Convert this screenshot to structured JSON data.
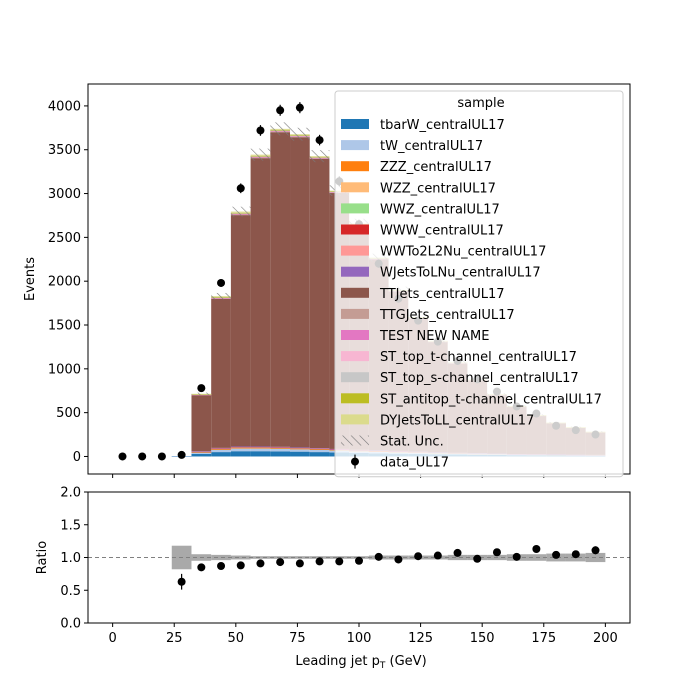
{
  "chart_data": [
    {
      "type": "bar",
      "stacked": true,
      "title": "",
      "xlabel": "",
      "ylabel": "Events",
      "xlim": [
        -10,
        210
      ],
      "ylim": [
        -200,
        4250
      ],
      "xticks": [
        0,
        25,
        50,
        75,
        100,
        125,
        150,
        175,
        200
      ],
      "xtick_labels_shown": false,
      "yticks": [
        0,
        500,
        1000,
        1500,
        2000,
        2500,
        3000,
        3500,
        4000
      ],
      "ytick_labels": [
        "0",
        "500",
        "1000",
        "1500",
        "2000",
        "2500",
        "3000",
        "3500",
        "4000"
      ],
      "bin_edges": [
        0,
        8,
        16,
        24,
        32,
        40,
        48,
        56,
        64,
        72,
        80,
        88,
        96,
        104,
        112,
        120,
        128,
        136,
        144,
        152,
        160,
        168,
        176,
        184,
        192,
        200
      ],
      "series": [
        {
          "name": "tbarW_centralUL17",
          "color": "#1f77b4",
          "values": [
            0,
            0,
            0,
            3,
            30,
            50,
            60,
            60,
            58,
            55,
            50,
            45,
            40,
            36,
            32,
            28,
            25,
            22,
            20,
            17,
            15,
            13,
            12,
            10,
            9
          ]
        },
        {
          "name": "tW_centralUL17",
          "color": "#aec7e8",
          "values": [
            0,
            0,
            0,
            2,
            18,
            30,
            36,
            36,
            34,
            32,
            30,
            27,
            24,
            21,
            19,
            17,
            15,
            13,
            12,
            10,
            9,
            8,
            7,
            6,
            5
          ]
        },
        {
          "name": "ZZZ_centralUL17",
          "color": "#ff7f0e",
          "values": [
            0,
            0,
            0,
            0,
            1,
            1,
            1,
            1,
            1,
            1,
            1,
            1,
            1,
            1,
            1,
            1,
            1,
            1,
            1,
            0,
            0,
            0,
            0,
            0,
            0
          ]
        },
        {
          "name": "WZZ_centralUL17",
          "color": "#ffbb78",
          "values": [
            0,
            0,
            0,
            0,
            3,
            5,
            5,
            5,
            5,
            4,
            4,
            4,
            3,
            3,
            3,
            2,
            2,
            2,
            2,
            2,
            1,
            1,
            1,
            1,
            1
          ]
        },
        {
          "name": "WWZ_centralUL17",
          "color": "#98df8a",
          "values": [
            0,
            0,
            0,
            0,
            2,
            3,
            3,
            3,
            3,
            3,
            3,
            2,
            2,
            2,
            2,
            2,
            1,
            1,
            1,
            1,
            1,
            1,
            1,
            1,
            1
          ]
        },
        {
          "name": "WWW_centralUL17",
          "color": "#d62728",
          "values": [
            0,
            0,
            0,
            0,
            1,
            1,
            1,
            1,
            1,
            1,
            1,
            1,
            1,
            1,
            1,
            1,
            0,
            0,
            0,
            0,
            0,
            0,
            0,
            0,
            0
          ]
        },
        {
          "name": "WWTo2L2Nu_centralUL17",
          "color": "#ff9896",
          "values": [
            0,
            0,
            0,
            0,
            3,
            5,
            5,
            5,
            5,
            4,
            4,
            4,
            3,
            3,
            3,
            2,
            2,
            2,
            2,
            2,
            1,
            1,
            1,
            1,
            1
          ]
        },
        {
          "name": "WJetsToLNu_centralUL17",
          "color": "#9467bd",
          "values": [
            0,
            0,
            0,
            0,
            2,
            3,
            3,
            3,
            3,
            3,
            3,
            2,
            2,
            2,
            2,
            2,
            1,
            1,
            1,
            1,
            1,
            1,
            1,
            1,
            1
          ]
        },
        {
          "name": "TTJets_centralUL17",
          "color": "#8c564b",
          "values": [
            0,
            0,
            0,
            0,
            640,
            1700,
            2640,
            3290,
            3590,
            3540,
            3300,
            2920,
            2560,
            2180,
            1820,
            1520,
            1260,
            1020,
            830,
            670,
            540,
            440,
            360,
            310,
            260
          ]
        },
        {
          "name": "TTGJets_centralUL17",
          "color": "#c49c94",
          "values": [
            0,
            0,
            0,
            0,
            4,
            8,
            10,
            10,
            10,
            9,
            9,
            8,
            7,
            6,
            5,
            4,
            4,
            3,
            3,
            2,
            2,
            2,
            1,
            1,
            1
          ]
        },
        {
          "name": "TEST NEW NAME",
          "color": "#e377c2",
          "values": [
            0,
            0,
            0,
            0,
            1,
            2,
            2,
            2,
            2,
            2,
            2,
            2,
            1,
            1,
            1,
            1,
            1,
            1,
            1,
            1,
            0,
            0,
            0,
            0,
            0
          ]
        },
        {
          "name": "ST_top_t-channel_centralUL17",
          "color": "#f7b6d2",
          "values": [
            0,
            0,
            0,
            0,
            3,
            6,
            8,
            8,
            8,
            7,
            7,
            6,
            5,
            5,
            4,
            4,
            3,
            3,
            2,
            2,
            2,
            2,
            1,
            1,
            1
          ]
        },
        {
          "name": "ST_top_s-channel_centralUL17",
          "color": "#c7c7c7",
          "values": [
            0,
            0,
            0,
            0,
            1,
            1,
            1,
            1,
            1,
            1,
            1,
            1,
            1,
            1,
            1,
            1,
            1,
            1,
            0,
            0,
            0,
            0,
            0,
            0,
            0
          ]
        },
        {
          "name": "ST_antitop_t-channel_centralUL17",
          "color": "#bcbd22",
          "values": [
            0,
            0,
            0,
            0,
            2,
            4,
            5,
            5,
            5,
            5,
            4,
            4,
            4,
            3,
            3,
            2,
            2,
            2,
            2,
            1,
            1,
            1,
            1,
            1,
            1
          ]
        },
        {
          "name": "DYJetsToLL_centralUL17",
          "color": "#dbdb8d",
          "values": [
            0,
            0,
            0,
            0,
            4,
            10,
            14,
            14,
            12,
            10,
            8,
            6,
            5,
            4,
            3,
            3,
            2,
            2,
            2,
            1,
            1,
            1,
            1,
            1,
            1
          ]
        }
      ],
      "stat_unc": {
        "name": "Stat. Unc.",
        "relative": 0.02
      },
      "data": {
        "name": "data_UL17",
        "color": "#000000",
        "x": [
          4,
          12,
          20,
          28,
          36,
          44,
          52,
          60,
          68,
          76,
          84,
          92,
          100,
          108,
          116,
          124,
          132,
          140,
          148,
          156,
          164,
          172,
          180,
          188,
          196
        ],
        "y": [
          0,
          0,
          0,
          18,
          780,
          1980,
          3060,
          3720,
          3950,
          3980,
          3610,
          3140,
          2650,
          2200,
          1800,
          1550,
          1310,
          1090,
          880,
          740,
          570,
          490,
          350,
          300,
          250
        ]
      },
      "legend": {
        "title": "sample",
        "position": "upper right"
      },
      "grid": false
    },
    {
      "type": "scatter",
      "title": "",
      "xlabel": "Leading jet  p",
      "xlabel_sub": "T",
      "xlabel_unit": " (GeV)",
      "ylabel": "Ratio",
      "xlim": [
        -10,
        210
      ],
      "ylim": [
        0.0,
        2.0
      ],
      "xticks": [
        0,
        25,
        50,
        75,
        100,
        125,
        150,
        175,
        200
      ],
      "xtick_labels": [
        "0",
        "25",
        "50",
        "75",
        "100",
        "125",
        "150",
        "175",
        "200"
      ],
      "yticks": [
        0.0,
        0.5,
        1.0,
        1.5,
        2.0
      ],
      "ytick_labels": [
        "0.0",
        "0.5",
        "1.0",
        "1.5",
        "2.0"
      ],
      "reference_line": 1.0,
      "x": [
        28,
        36,
        44,
        52,
        60,
        68,
        76,
        84,
        92,
        100,
        108,
        116,
        124,
        132,
        140,
        148,
        156,
        164,
        172,
        180,
        188,
        196
      ],
      "y": [
        0.63,
        0.85,
        0.87,
        0.88,
        0.91,
        0.93,
        0.91,
        0.94,
        0.94,
        0.95,
        1.01,
        0.97,
        1.02,
        1.03,
        1.07,
        0.98,
        1.08,
        1.01,
        1.13,
        1.04,
        1.05,
        1.11
      ],
      "yerr": [
        0.12,
        0.03,
        0.02,
        0.02,
        0.01,
        0.01,
        0.01,
        0.01,
        0.02,
        0.02,
        0.02,
        0.02,
        0.02,
        0.03,
        0.03,
        0.03,
        0.04,
        0.04,
        0.04,
        0.05,
        0.05,
        0.06
      ],
      "unc_band": {
        "bin_edges": [
          24,
          32,
          40,
          48,
          56,
          64,
          72,
          80,
          88,
          96,
          104,
          112,
          120,
          128,
          136,
          144,
          152,
          160,
          168,
          176,
          184,
          192,
          200
        ],
        "half_width": [
          0.18,
          0.05,
          0.04,
          0.03,
          0.02,
          0.02,
          0.02,
          0.02,
          0.02,
          0.02,
          0.03,
          0.03,
          0.03,
          0.03,
          0.04,
          0.04,
          0.04,
          0.05,
          0.05,
          0.06,
          0.06,
          0.07
        ]
      }
    }
  ]
}
